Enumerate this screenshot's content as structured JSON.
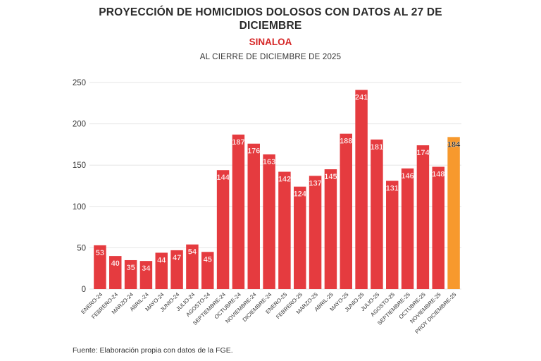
{
  "header": {
    "title_line1": "PROYECCIÓN DE HOMICIDIOS DOLOSOS CON DATOS AL 27 DE",
    "title_line2": "DICIEMBRE",
    "subtitle": "SINALOA",
    "caption": "AL CIERRE DE DICIEMBRE DE 2025"
  },
  "footer": {
    "source": "Fuente: Elaboración propia con datos de la FGE."
  },
  "colors": {
    "bar": "#e53b3f",
    "bar_highlight": "#f7992d",
    "grid": "#e6e6e6",
    "label_text": "#ffffff",
    "label_text_highlight": "#1a1a1a"
  },
  "chart_data": {
    "type": "bar",
    "title": "PROYECCIÓN DE HOMICIDIOS DOLOSOS CON DATOS AL 27 DE DICIEMBRE",
    "subtitle": "SINALOA",
    "xlabel": "",
    "ylabel": "",
    "ylim": [
      0,
      250
    ],
    "yticks": [
      0,
      50,
      100,
      150,
      200,
      250
    ],
    "grid": true,
    "categories": [
      "ENERO-24",
      "FEBRERO-24",
      "MARZO-24",
      "ABRIL-24",
      "MAYO-24",
      "JUNIO-24",
      "JULIO-24",
      "AGOSTO-24",
      "SEPTIEMBRE-24",
      "OCTUBRE-24",
      "NOVIEMBRE-24",
      "DICIEMBRE-24",
      "ENERO-25",
      "FEBRERO-25",
      "MARZO-25",
      "ABRIL-25",
      "MAYO-25",
      "JUNIO-25",
      "JULIO-25",
      "AGOSTO-25",
      "SEPTIEMBRE-25",
      "OCTUBRE-25",
      "NOVIEMBRE-25",
      "PROY DICIEMBRE-25"
    ],
    "values": [
      53,
      40,
      35,
      34,
      44,
      47,
      54,
      45,
      144,
      187,
      176,
      163,
      142,
      124,
      137,
      145,
      188,
      241,
      181,
      131,
      146,
      174,
      148,
      184
    ],
    "highlight_index": 23
  }
}
